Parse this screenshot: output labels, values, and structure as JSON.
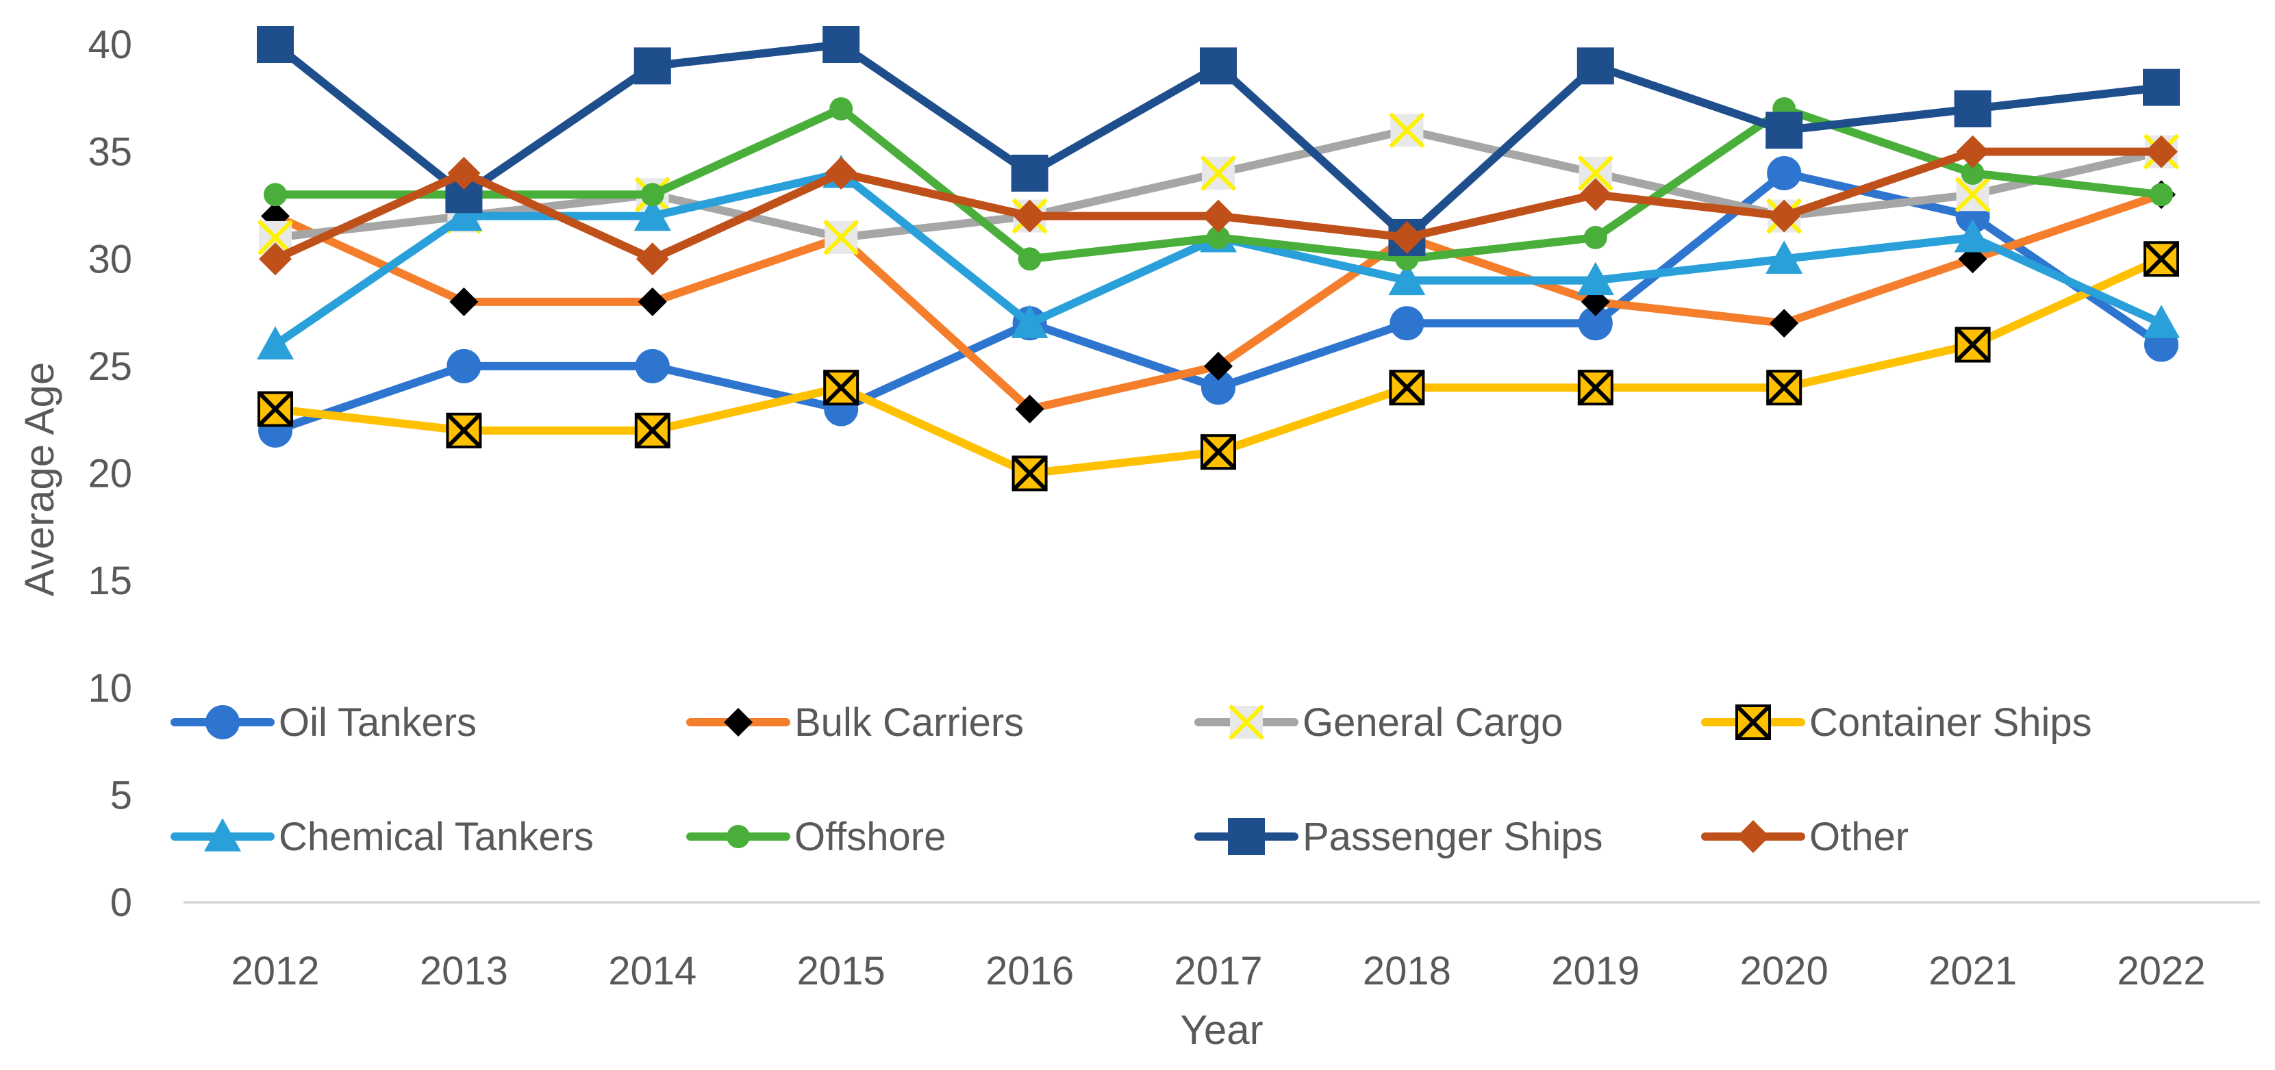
{
  "chart_data": {
    "type": "line",
    "title": "",
    "xlabel": "Year",
    "ylabel": "Average Age",
    "ylim": [
      0,
      40
    ],
    "yticks": [
      0,
      5,
      10,
      15,
      20,
      25,
      30,
      35,
      40
    ],
    "grid": false,
    "legend_position": "bottom-inside",
    "categories": [
      "2012",
      "2013",
      "2014",
      "2015",
      "2016",
      "2017",
      "2018",
      "2019",
      "2020",
      "2021",
      "2022"
    ],
    "series": [
      {
        "name": "Oil Tankers",
        "color": "#2E75D0",
        "marker": "circle",
        "values": [
          22,
          25,
          25,
          23,
          27,
          24,
          27,
          27,
          34,
          32,
          26
        ]
      },
      {
        "name": "Bulk Carriers",
        "color": "#F47E2B",
        "marker": "diamond",
        "values": [
          32,
          28,
          28,
          31,
          23,
          25,
          31,
          28,
          27,
          30,
          33
        ]
      },
      {
        "name": "General Cargo",
        "color": "#A6A6A6",
        "marker": "x-square-yellow",
        "values": [
          31,
          32,
          33,
          31,
          32,
          34,
          36,
          34,
          32,
          33,
          35
        ]
      },
      {
        "name": "Container Ships",
        "color": "#FFC000",
        "marker": "x-square-black",
        "values": [
          23,
          22,
          22,
          24,
          20,
          21,
          24,
          24,
          24,
          26,
          30
        ]
      },
      {
        "name": "Chemical Tankers",
        "color": "#2AA0DA",
        "marker": "triangle",
        "values": [
          26,
          32,
          32,
          34,
          27,
          31,
          29,
          29,
          30,
          31,
          27
        ]
      },
      {
        "name": "Offshore",
        "color": "#4AAF3A",
        "marker": "circle-small",
        "values": [
          33,
          33,
          33,
          37,
          30,
          31,
          30,
          31,
          37,
          34,
          33
        ]
      },
      {
        "name": "Passenger Ships",
        "color": "#1F4E8C",
        "marker": "square",
        "values": [
          40,
          33,
          39,
          40,
          34,
          39,
          31,
          39,
          36,
          37,
          38
        ]
      },
      {
        "name": "Other",
        "color": "#C0501A",
        "marker": "diamond-large",
        "values": [
          30,
          34,
          30,
          34,
          32,
          32,
          31,
          33,
          32,
          35,
          35
        ]
      }
    ]
  }
}
